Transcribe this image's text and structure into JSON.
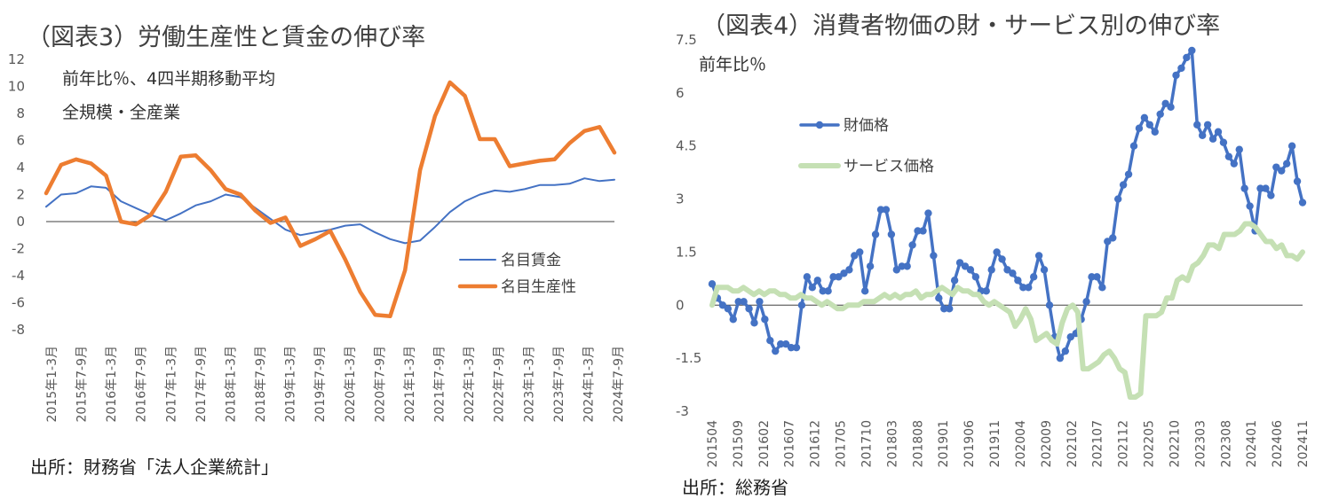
{
  "left": {
    "title": "（図表3）労働生産性と賃金の伸び率",
    "note1": "前年比％、4四半期移動平均",
    "note2": "全規模・全産業",
    "source": "出所：財務省「法人企業統計」"
  },
  "right": {
    "title": "（図表4）消費者物価の財・サービス別の伸び率",
    "source": "出所：総務省"
  },
  "colors": {
    "wage": "#4472c4",
    "productivity": "#ed7d31",
    "goods": "#4472c4",
    "services": "#c5e0b4"
  },
  "chart_data": [
    {
      "type": "line",
      "title": "（図表3）労働生産性と賃金の伸び率",
      "ylabel": "前年比％、4四半期移動平均",
      "ylim": [
        -8,
        12
      ],
      "yticks": [
        "12",
        "10",
        "8",
        "6",
        "4",
        "2",
        "0",
        "-2",
        "-4",
        "-6",
        "-8"
      ],
      "xtick_labels": [
        "2015年1-3月",
        "2015年7-9月",
        "2016年1-3月",
        "2016年7-9月",
        "2017年1-3月",
        "2017年7-9月",
        "2018年1-3月",
        "2018年7-9月",
        "2019年1-3月",
        "2019年7-9月",
        "2020年1-3月",
        "2020年7-9月",
        "2021年1-3月",
        "2021年7-9月",
        "2022年1-3月",
        "2022年7-9月",
        "2023年1-3月",
        "2023年7-9月",
        "2024年1-3月",
        "2024年7-9月"
      ],
      "legend_position": "right-middle",
      "grid": false,
      "series": [
        {
          "name": "名目賃金",
          "values": [
            1.1,
            2.0,
            2.1,
            2.6,
            2.5,
            1.5,
            1.0,
            0.5,
            0.1,
            0.6,
            1.2,
            1.5,
            2.0,
            1.8,
            1.0,
            0.2,
            -0.6,
            -1.0,
            -0.8,
            -0.6,
            -0.3,
            -0.2,
            -0.8,
            -1.3,
            -1.6,
            -1.4,
            -0.4,
            0.7,
            1.5,
            2.0,
            2.3,
            2.2,
            2.4,
            2.7,
            2.7,
            2.8,
            3.2,
            3.0,
            3.1
          ]
        },
        {
          "name": "名目生産性",
          "values": [
            2.1,
            4.2,
            4.6,
            4.3,
            3.4,
            0.0,
            -0.2,
            0.5,
            2.2,
            4.8,
            4.9,
            3.8,
            2.4,
            2.0,
            0.8,
            -0.1,
            0.3,
            -1.8,
            -1.3,
            -0.7,
            -2.8,
            -5.2,
            -6.9,
            -7.0,
            -3.6,
            3.8,
            7.8,
            10.3,
            9.3,
            6.1,
            6.1,
            4.1,
            4.3,
            4.5,
            4.6,
            5.8,
            6.7,
            7.0,
            5.1
          ]
        }
      ]
    },
    {
      "type": "line",
      "title": "（図表4）消費者物価の財・サービス別の伸び率",
      "ylabel": "前年比％",
      "ylim": [
        -3,
        7.5
      ],
      "yticks": [
        "7.5",
        "6",
        "4.5",
        "3",
        "1.5",
        "0",
        "-1.5",
        "-3"
      ],
      "xtick_labels": [
        "201504",
        "201509",
        "201602",
        "201607",
        "201612",
        "201705",
        "201710",
        "201803",
        "201808",
        "201901",
        "201906",
        "201911",
        "202004",
        "202009",
        "202102",
        "202107",
        "202112",
        "202205",
        "202210",
        "202303",
        "202308",
        "202401",
        "202406",
        "202411"
      ],
      "legend_position": "top-left",
      "grid": false,
      "series": [
        {
          "name": "財価格",
          "values": [
            0.6,
            0.2,
            0.0,
            -0.1,
            -0.4,
            0.1,
            0.1,
            -0.1,
            -0.5,
            0.1,
            -0.4,
            -1.0,
            -1.3,
            -1.1,
            -1.1,
            -1.2,
            -1.2,
            0.0,
            0.8,
            0.5,
            0.7,
            0.4,
            0.4,
            0.8,
            0.8,
            0.9,
            1.0,
            1.4,
            1.5,
            0.4,
            1.1,
            2.0,
            2.7,
            2.7,
            2.0,
            1.0,
            1.1,
            1.1,
            1.7,
            2.1,
            2.1,
            2.6,
            1.4,
            0.2,
            -0.1,
            -0.1,
            0.7,
            1.2,
            1.1,
            1.0,
            0.8,
            0.4,
            0.4,
            1.0,
            1.5,
            1.3,
            1.0,
            0.9,
            0.7,
            0.5,
            0.5,
            0.8,
            1.4,
            1.0,
            0.0,
            -0.9,
            -1.5,
            -1.3,
            -0.9,
            -0.8,
            -0.4,
            0.1,
            0.8,
            0.8,
            0.5,
            1.8,
            1.9,
            3.0,
            3.4,
            3.7,
            4.5,
            5.0,
            5.3,
            5.1,
            4.9,
            5.4,
            5.7,
            5.6,
            6.5,
            6.7,
            7.0,
            7.2,
            5.1,
            4.8,
            5.1,
            4.7,
            4.9,
            4.6,
            4.2,
            4.0,
            4.4,
            3.3,
            2.8,
            2.1,
            3.3,
            3.3,
            3.1,
            3.9,
            3.8,
            4.0,
            4.5,
            3.5,
            2.9
          ]
        },
        {
          "name": "サービス価格",
          "values": [
            0.0,
            0.5,
            0.5,
            0.5,
            0.4,
            0.4,
            0.5,
            0.4,
            0.3,
            0.4,
            0.3,
            0.4,
            0.4,
            0.3,
            0.3,
            0.2,
            0.2,
            0.3,
            0.2,
            0.2,
            0.1,
            0.0,
            0.1,
            0.0,
            -0.1,
            -0.1,
            0.0,
            0.0,
            0.0,
            0.1,
            0.1,
            0.1,
            0.2,
            0.3,
            0.2,
            0.3,
            0.2,
            0.3,
            0.3,
            0.4,
            0.2,
            0.3,
            0.3,
            0.4,
            0.5,
            0.4,
            0.3,
            0.5,
            0.4,
            0.4,
            0.3,
            0.3,
            0.1,
            0.0,
            0.1,
            0.0,
            -0.1,
            -0.2,
            -0.6,
            -0.4,
            -0.1,
            -0.4,
            -1.0,
            -0.9,
            -0.8,
            -1.0,
            -1.1,
            -0.5,
            -0.1,
            0.0,
            -0.2,
            -1.8,
            -1.8,
            -1.7,
            -1.6,
            -1.4,
            -1.3,
            -1.5,
            -1.8,
            -1.9,
            -2.6,
            -2.6,
            -2.5,
            -0.3,
            -0.3,
            -0.3,
            -0.2,
            0.2,
            0.2,
            0.7,
            0.8,
            0.7,
            1.1,
            1.2,
            1.4,
            1.7,
            1.7,
            1.6,
            2.0,
            2.0,
            2.0,
            2.1,
            2.3,
            2.3,
            2.2,
            2.0,
            1.8,
            1.8,
            1.6,
            1.7,
            1.4,
            1.4,
            1.3,
            1.5
          ]
        }
      ]
    }
  ]
}
